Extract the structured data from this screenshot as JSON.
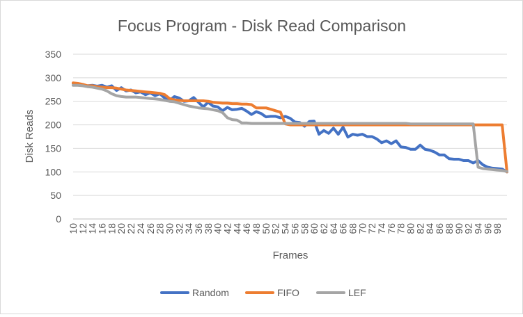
{
  "chart_data": {
    "type": "line",
    "title": "Focus Program - Disk Read Comparison",
    "xlabel": "Frames",
    "ylabel": "Disk Reads",
    "xlim": [
      10,
      100
    ],
    "ylim": [
      0,
      350
    ],
    "y_ticks": [
      0,
      50,
      100,
      150,
      200,
      250,
      300,
      350
    ],
    "x_tick_labels": [
      "10",
      "12",
      "14",
      "16",
      "18",
      "20",
      "22",
      "24",
      "26",
      "28",
      "30",
      "32",
      "34",
      "36",
      "38",
      "40",
      "42",
      "44",
      "46",
      "48",
      "50",
      "52",
      "54",
      "56",
      "58",
      "60",
      "62",
      "64",
      "66",
      "68",
      "70",
      "72",
      "74",
      "76",
      "78",
      "80",
      "82",
      "84",
      "86",
      "88",
      "90",
      "92",
      "94",
      "96",
      "98"
    ],
    "grid": "horizontal",
    "legend_position": "bottom",
    "x": [
      10,
      11,
      12,
      13,
      14,
      15,
      16,
      17,
      18,
      19,
      20,
      21,
      22,
      23,
      24,
      25,
      26,
      27,
      28,
      29,
      30,
      31,
      32,
      33,
      34,
      35,
      36,
      37,
      38,
      39,
      40,
      41,
      42,
      43,
      44,
      45,
      46,
      47,
      48,
      49,
      50,
      51,
      52,
      53,
      54,
      55,
      56,
      57,
      58,
      59,
      60,
      61,
      62,
      63,
      64,
      65,
      66,
      67,
      68,
      69,
      70,
      71,
      72,
      73,
      74,
      75,
      76,
      77,
      78,
      79,
      80,
      81,
      82,
      83,
      84,
      85,
      86,
      87,
      88,
      89,
      90,
      91,
      92,
      93,
      94,
      95,
      96,
      97,
      98,
      99,
      100
    ],
    "series": [
      {
        "name": "Random",
        "color": "#4472C4",
        "values": [
          288,
          287,
          285,
          283,
          284,
          282,
          284,
          280,
          283,
          273,
          279,
          272,
          274,
          268,
          270,
          264,
          268,
          262,
          266,
          257,
          252,
          260,
          257,
          250,
          251,
          258,
          248,
          238,
          248,
          240,
          238,
          230,
          237,
          232,
          233,
          235,
          229,
          222,
          228,
          224,
          217,
          218,
          218,
          215,
          218,
          214,
          206,
          205,
          197,
          207,
          208,
          180,
          188,
          182,
          193,
          180,
          195,
          174,
          180,
          178,
          180,
          175,
          175,
          170,
          162,
          166,
          160,
          166,
          153,
          152,
          148,
          148,
          157,
          148,
          146,
          142,
          136,
          136,
          128,
          127,
          127,
          124,
          124,
          119,
          124,
          115,
          110,
          108,
          107,
          106,
          100
        ]
      },
      {
        "name": "FIFO",
        "color": "#ED7D31",
        "values": [
          289,
          288,
          286,
          283,
          283,
          281,
          280,
          279,
          279,
          278,
          276,
          274,
          273,
          272,
          271,
          270,
          269,
          268,
          267,
          264,
          256,
          253,
          252,
          251,
          251,
          251,
          251,
          251,
          250,
          248,
          247,
          246,
          246,
          245,
          245,
          244,
          244,
          243,
          236,
          236,
          236,
          233,
          230,
          227,
          202,
          200,
          200,
          200,
          200,
          200,
          200,
          200,
          200,
          200,
          200,
          200,
          200,
          200,
          200,
          200,
          200,
          200,
          200,
          200,
          200,
          200,
          200,
          200,
          200,
          200,
          200,
          200,
          200,
          200,
          200,
          200,
          200,
          200,
          200,
          200,
          200,
          200,
          200,
          200,
          200,
          200,
          200,
          200,
          200,
          200,
          100
        ]
      },
      {
        "name": "LEF",
        "color": "#A5A5A5",
        "values": [
          284,
          284,
          283,
          281,
          280,
          278,
          276,
          272,
          266,
          262,
          260,
          259,
          259,
          259,
          258,
          257,
          256,
          255,
          254,
          252,
          250,
          249,
          246,
          243,
          240,
          238,
          236,
          235,
          234,
          232,
          230,
          226,
          215,
          211,
          210,
          204,
          204,
          203,
          203,
          203,
          203,
          203,
          203,
          203,
          203,
          203,
          203,
          203,
          203,
          203,
          203,
          203,
          203,
          203,
          203,
          203,
          203,
          203,
          203,
          203,
          203,
          203,
          203,
          203,
          203,
          203,
          203,
          203,
          203,
          203,
          202,
          202,
          202,
          202,
          202,
          202,
          202,
          202,
          202,
          202,
          202,
          202,
          202,
          202,
          110,
          107,
          106,
          105,
          104,
          103,
          101
        ]
      }
    ]
  }
}
